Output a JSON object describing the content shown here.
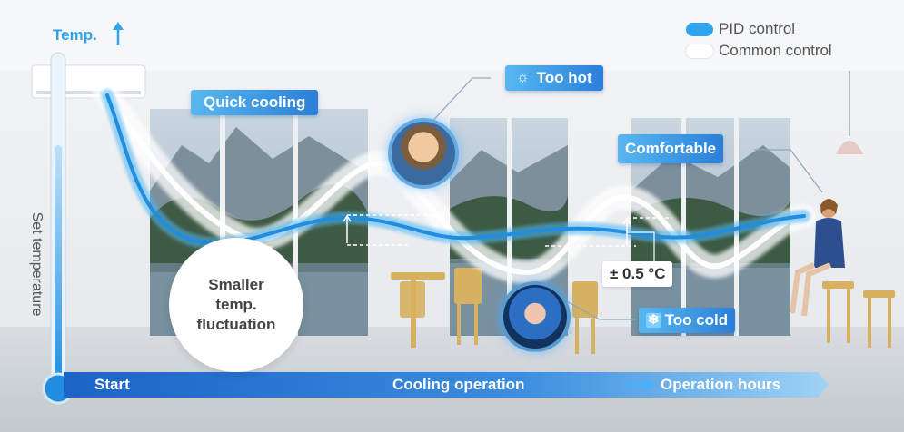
{
  "axis": {
    "y_label": "Temp.",
    "set_temperature": "Set temperature",
    "start": "Start",
    "cooling_operation": "Cooling operation",
    "operation_hours": "Operation hours"
  },
  "legend": [
    {
      "label": "PID control",
      "color": "#2fa3ee"
    },
    {
      "label": "Common control",
      "color": "#ffffff"
    }
  ],
  "callouts": {
    "quick_cooling": "Quick cooling",
    "too_hot": "Too hot",
    "comfortable": "Comfortable",
    "too_cold": "Too cold",
    "tolerance": "± 0.5 °C",
    "fluctuation_line1": "Smaller",
    "fluctuation_line2": "temp.",
    "fluctuation_line3": "fluctuation"
  },
  "colors": {
    "accent_blue": "#2b7fd8",
    "light_blue": "#57b8f0",
    "thermometer": "#1f8de0"
  },
  "icons": [
    "sun-icon",
    "snowflake-icon",
    "up-arrow-icon",
    "right-arrow-icon",
    "thermometer-icon",
    "face-hot-icon",
    "face-cold-icon",
    "person-sitting-icon"
  ]
}
